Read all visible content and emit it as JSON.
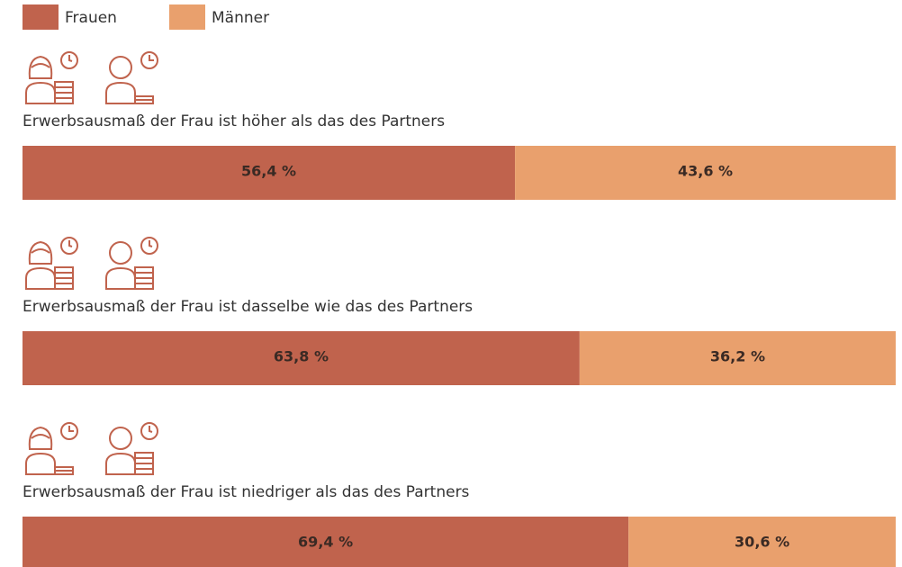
{
  "chart_data": {
    "type": "bar",
    "orientation": "horizontal",
    "stacked": true,
    "categories": [
      "Erwerbsausmaß der Frau ist höher als das des Partners",
      "Erwerbsausmaß der Frau ist dasselbe wie das des Partners",
      "Erwerbsausmaß der Frau ist niedriger als das des Partners"
    ],
    "series": [
      {
        "name": "Frauen",
        "color": "#c0634d",
        "values": [
          56.4,
          63.8,
          69.4
        ],
        "value_labels": [
          "56,4 %",
          "63,8 %",
          "69,4 %"
        ]
      },
      {
        "name": "Männer",
        "color": "#e9a06d",
        "values": [
          43.6,
          36.2,
          30.6
        ],
        "value_labels": [
          "43,6 %",
          "36,2 %",
          "30,6 %"
        ]
      }
    ],
    "xlim": [
      0,
      100
    ],
    "legend": "top-left"
  }
}
